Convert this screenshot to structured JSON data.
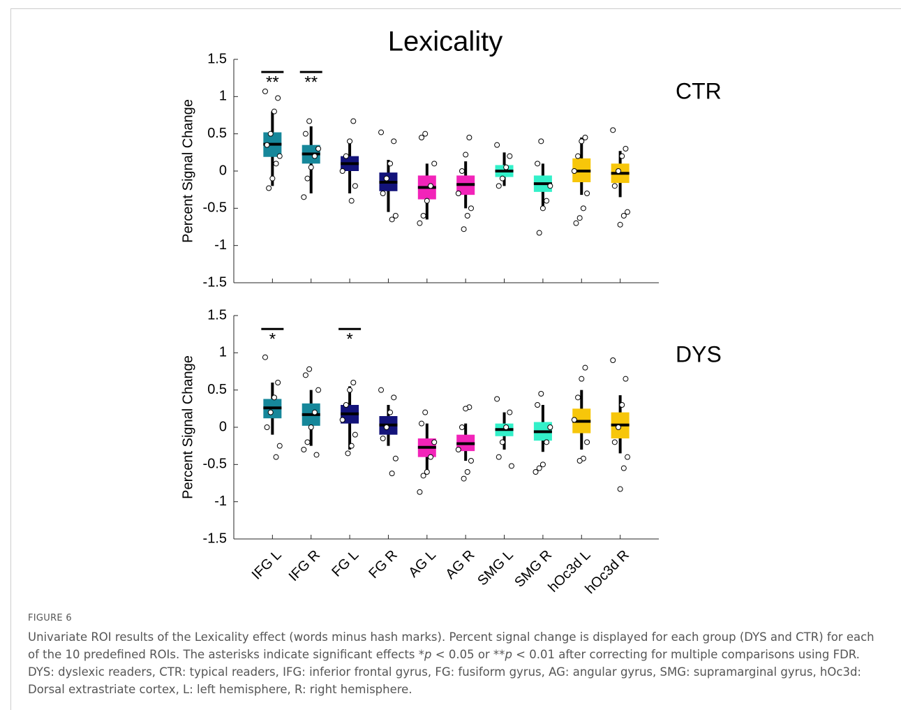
{
  "chart_data": [
    {
      "type": "box",
      "title": "Lexicality",
      "label": "CTR",
      "ylabel": "Percent Signal Change",
      "ylim": [
        -1.5,
        1.5
      ],
      "yticks": [
        1.5,
        1,
        0.5,
        0,
        -0.5,
        -1,
        -1.5
      ],
      "xlim": [
        0,
        11
      ],
      "colors": [
        "#16879a",
        "#16879a",
        "#13137a",
        "#13137a",
        "#f224b9",
        "#f224b9",
        "#33f0c9",
        "#33f0c9",
        "#f7c60a",
        "#f7c60a"
      ],
      "boxes": [
        {
          "whislo": -0.2,
          "q1": 0.19,
          "med": 0.36,
          "q3": 0.52,
          "whishi": 0.8,
          "points": [
            1.07,
            0.98,
            0.8,
            0.5,
            0.35,
            0.2,
            0.1,
            -0.1,
            -0.23
          ]
        },
        {
          "whislo": -0.3,
          "q1": 0.1,
          "med": 0.23,
          "q3": 0.35,
          "whishi": 0.6,
          "points": [
            0.67,
            0.5,
            0.3,
            0.2,
            0.05,
            -0.1,
            -0.35
          ]
        },
        {
          "whislo": -0.3,
          "q1": 0,
          "med": 0.1,
          "q3": 0.2,
          "whishi": 0.43,
          "points": [
            0.67,
            0.4,
            0.2,
            0,
            -0.2,
            -0.4
          ]
        },
        {
          "whislo": -0.55,
          "q1": -0.27,
          "med": -0.15,
          "q3": -0.02,
          "whishi": 0.15,
          "points": [
            0.52,
            0.4,
            0.1,
            -0.1,
            -0.3,
            -0.6,
            -0.65
          ]
        },
        {
          "whislo": -0.65,
          "q1": -0.38,
          "med": -0.22,
          "q3": -0.06,
          "whishi": 0.1,
          "points": [
            0.5,
            0.45,
            0.1,
            -0.2,
            -0.4,
            -0.6,
            -0.7
          ]
        },
        {
          "whislo": -0.5,
          "q1": -0.32,
          "med": -0.18,
          "q3": -0.06,
          "whishi": 0.13,
          "points": [
            0.45,
            0.22,
            0,
            -0.3,
            -0.5,
            -0.6,
            -0.78
          ]
        },
        {
          "whislo": -0.2,
          "q1": -0.08,
          "med": 0,
          "q3": 0.08,
          "whishi": 0.25,
          "points": [
            0.35,
            0.2,
            0.05,
            -0.1,
            -0.2
          ]
        },
        {
          "whislo": -0.5,
          "q1": -0.28,
          "med": -0.17,
          "q3": -0.06,
          "whishi": 0.1,
          "points": [
            0.4,
            0.1,
            -0.2,
            -0.4,
            -0.5,
            -0.83
          ]
        },
        {
          "whislo": -0.32,
          "q1": -0.15,
          "med": 0,
          "q3": 0.17,
          "whishi": 0.45,
          "points": [
            0.45,
            0.4,
            0.2,
            0,
            -0.3,
            -0.5,
            -0.63,
            -0.7
          ]
        },
        {
          "whislo": -0.35,
          "q1": -0.16,
          "med": -0.03,
          "q3": 0.1,
          "whishi": 0.27,
          "points": [
            0.55,
            0.3,
            0.2,
            0,
            -0.2,
            -0.55,
            -0.6,
            -0.72
          ]
        }
      ],
      "significance": [
        {
          "category": "IFG L",
          "y": 1.33,
          "label": "**"
        },
        {
          "category": "IFG R",
          "y": 1.33,
          "label": "**"
        }
      ]
    },
    {
      "type": "box",
      "label": "DYS",
      "ylabel": "Percent Signal Change",
      "ylim": [
        -1.5,
        1.5
      ],
      "yticks": [
        1.5,
        1,
        0.5,
        0,
        -0.5,
        -1,
        -1.5
      ],
      "xlim": [
        0,
        11
      ],
      "categories": [
        "IFG L",
        "IFG R",
        "FG L",
        "FG R",
        "AG L",
        "AG R",
        "SMG L",
        "SMG R",
        "hOc3d L",
        "hOc3d R"
      ],
      "colors": [
        "#16879a",
        "#16879a",
        "#13137a",
        "#13137a",
        "#f224b9",
        "#f224b9",
        "#33f0c9",
        "#33f0c9",
        "#f7c60a",
        "#f7c60a"
      ],
      "boxes": [
        {
          "whislo": -0.1,
          "q1": 0.12,
          "med": 0.26,
          "q3": 0.38,
          "whishi": 0.6,
          "points": [
            0.94,
            0.6,
            0.4,
            0.2,
            0,
            -0.25,
            -0.4
          ]
        },
        {
          "whislo": -0.25,
          "q1": 0.02,
          "med": 0.17,
          "q3": 0.32,
          "whishi": 0.5,
          "points": [
            0.78,
            0.7,
            0.5,
            0.2,
            0,
            -0.2,
            -0.3,
            -0.37
          ]
        },
        {
          "whislo": -0.3,
          "q1": 0.05,
          "med": 0.18,
          "q3": 0.3,
          "whishi": 0.55,
          "points": [
            0.6,
            0.5,
            0.3,
            0.1,
            -0.1,
            -0.25,
            -0.35
          ]
        },
        {
          "whislo": -0.25,
          "q1": -0.1,
          "med": 0.03,
          "q3": 0.15,
          "whishi": 0.3,
          "points": [
            0.5,
            0.4,
            0.2,
            0,
            -0.15,
            -0.42,
            -0.62
          ]
        },
        {
          "whislo": -0.63,
          "q1": -0.4,
          "med": -0.27,
          "q3": -0.15,
          "whishi": 0.05,
          "points": [
            0.2,
            0.05,
            -0.2,
            -0.4,
            -0.6,
            -0.65,
            -0.87
          ]
        },
        {
          "whislo": -0.45,
          "q1": -0.32,
          "med": -0.22,
          "q3": -0.1,
          "whishi": 0.05,
          "points": [
            0.27,
            0.25,
            0,
            -0.3,
            -0.45,
            -0.6,
            -0.69
          ]
        },
        {
          "whislo": -0.3,
          "q1": -0.12,
          "med": -0.03,
          "q3": 0.05,
          "whishi": 0.2,
          "points": [
            0.38,
            0.2,
            0,
            -0.2,
            -0.4,
            -0.52
          ]
        },
        {
          "whislo": -0.33,
          "q1": -0.18,
          "med": -0.06,
          "q3": 0.07,
          "whishi": 0.3,
          "points": [
            0.45,
            0.3,
            0,
            -0.2,
            -0.5,
            -0.55,
            -0.6
          ]
        },
        {
          "whislo": -0.3,
          "q1": -0.08,
          "med": 0.08,
          "q3": 0.25,
          "whishi": 0.5,
          "points": [
            0.8,
            0.65,
            0.4,
            0.1,
            -0.2,
            -0.42,
            -0.45
          ]
        },
        {
          "whislo": -0.35,
          "q1": -0.15,
          "med": 0.03,
          "q3": 0.2,
          "whishi": 0.43,
          "points": [
            0.9,
            0.65,
            0.3,
            0,
            -0.2,
            -0.4,
            -0.55,
            -0.83
          ]
        }
      ],
      "significance": [
        {
          "category": "IFG L",
          "y": 1.32,
          "label": "*"
        },
        {
          "category": "FG L",
          "y": 1.32,
          "label": "*"
        }
      ]
    }
  ],
  "figure": {
    "label": "FIGURE 6",
    "caption": [
      "Univariate ROI results of the Lexicality effect (words minus hash marks). Percent signal change is displayed for each group (DYS and CTR) for each of the 10 predefined ROIs. The asterisks indicate significant effects *",
      "p",
      " < 0.05 or **",
      "p",
      " < 0.01 after correcting for multiple comparisons using FDR. DYS: dyslexic readers, CTR: typical readers, IFG: inferior frontal gyrus, FG: fusiform gyrus, AG: angular gyrus, SMG: supramarginal gyrus, hOc3d: Dorsal extrastriate cortex, L: left hemisphere, R: right hemisphere."
    ]
  }
}
